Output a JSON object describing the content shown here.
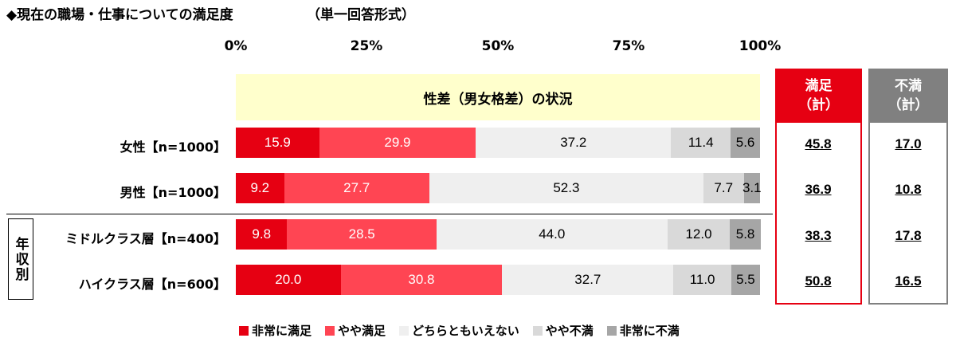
{
  "header": {
    "title": "◆現在の職場・仕事についての満足度",
    "format": "（単一回答形式）"
  },
  "banner": "性差（男女格差）の状況",
  "group_label": "年収別",
  "totals_headers": {
    "satisfied": {
      "line1": "満足",
      "line2": "（計）"
    },
    "dissatisfied": {
      "line1": "不満",
      "line2": "（計）"
    }
  },
  "chart_data": {
    "type": "bar",
    "orientation": "horizontal",
    "stacked": "percent",
    "xlim": [
      0,
      100
    ],
    "tick_labels": [
      "0%",
      "25%",
      "50%",
      "75%",
      "100%"
    ],
    "categories": [
      "女性【n=1000】",
      "男性【n=1000】",
      "ミドルクラス層【n=400】",
      "ハイクラス層【n=600】"
    ],
    "series": [
      {
        "name": "非常に満足",
        "color": "#e60012",
        "text_color": "#ffffff",
        "values": [
          15.9,
          9.2,
          9.8,
          20.0
        ]
      },
      {
        "name": "やや満足",
        "color": "#ff4553",
        "text_color": "#ffffff",
        "values": [
          29.9,
          27.7,
          28.5,
          30.8
        ]
      },
      {
        "name": "どちらともいえない",
        "color": "#efefef",
        "text_color": "#000000",
        "values": [
          37.2,
          52.3,
          44.0,
          32.7
        ]
      },
      {
        "name": "やや不満",
        "color": "#d9d9d9",
        "text_color": "#000000",
        "values": [
          11.4,
          7.7,
          12.0,
          11.0
        ]
      },
      {
        "name": "非常に不満",
        "color": "#a6a6a6",
        "text_color": "#000000",
        "values": [
          5.6,
          3.1,
          5.8,
          5.5
        ]
      }
    ],
    "value_labels": [
      [
        "15.9",
        "29.9",
        "37.2",
        "11.4",
        "5.6"
      ],
      [
        "9.2",
        "27.7",
        "52.3",
        "7.7",
        "3.1"
      ],
      [
        "9.8",
        "28.5",
        "44.0",
        "12.0",
        "5.8"
      ],
      [
        "20.0",
        "30.8",
        "32.7",
        "11.0",
        "5.5"
      ]
    ],
    "totals": {
      "satisfied": [
        "45.8",
        "36.9",
        "38.3",
        "50.8"
      ],
      "dissatisfied": [
        "17.0",
        "10.8",
        "17.8",
        "16.5"
      ]
    }
  }
}
